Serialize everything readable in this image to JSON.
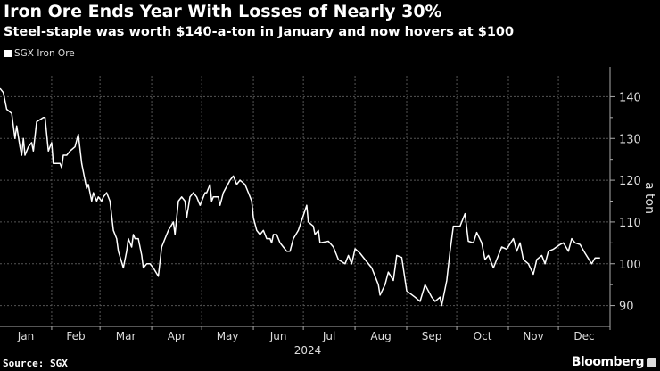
{
  "header": {
    "title": "Iron Ore Ends Year With Losses of Nearly 30%",
    "subtitle": "Steel-staple was worth $140-a-ton in January and now hovers at $100"
  },
  "footer": {
    "source": "Source: SGX",
    "brand": "Bloomberg"
  },
  "chart_data": {
    "type": "line",
    "title": "Iron Ore Ends Year With Losses of Nearly 30%",
    "subtitle": "Steel-staple was worth $140-a-ton in January and now hovers at $100",
    "xlabel": "2024",
    "ylabel": "a ton",
    "legend": {
      "position": "top-left",
      "entries": [
        "SGX Iron Ore"
      ]
    },
    "ylim": [
      85,
      145
    ],
    "yticks": [
      90,
      100,
      110,
      120,
      130,
      140
    ],
    "xlim_days": [
      0,
      366
    ],
    "month_labels": [
      "Jan",
      "Feb",
      "Mar",
      "Apr",
      "May",
      "Jun",
      "Jul",
      "Aug",
      "Sep",
      "Oct",
      "Nov",
      "Dec"
    ],
    "month_start_days": [
      0,
      31,
      60,
      91,
      121,
      152,
      182,
      213,
      244,
      274,
      305,
      335
    ],
    "grid": true,
    "colors": {
      "line": "#ffffff",
      "grid": "#555555",
      "axis": "#aaaaaa"
    },
    "series": [
      {
        "name": "SGX Iron Ore",
        "points_day_value": [
          [
            0,
            142
          ],
          [
            2,
            141
          ],
          [
            4,
            137
          ],
          [
            7,
            136
          ],
          [
            9,
            130
          ],
          [
            10,
            133
          ],
          [
            12,
            128
          ],
          [
            13,
            126
          ],
          [
            14,
            130
          ],
          [
            15,
            126
          ],
          [
            17,
            128
          ],
          [
            19,
            129
          ],
          [
            20,
            127
          ],
          [
            22,
            134
          ],
          [
            26,
            135
          ],
          [
            27,
            135
          ],
          [
            29,
            127
          ],
          [
            31,
            129
          ],
          [
            32,
            124
          ],
          [
            34,
            124
          ],
          [
            36,
            124
          ],
          [
            37,
            123
          ],
          [
            38,
            126
          ],
          [
            40,
            126
          ],
          [
            42,
            127
          ],
          [
            45,
            128
          ],
          [
            47,
            131
          ],
          [
            49,
            124
          ],
          [
            51,
            120
          ],
          [
            52,
            118
          ],
          [
            53,
            119
          ],
          [
            55,
            115
          ],
          [
            56,
            117
          ],
          [
            58,
            115
          ],
          [
            59,
            116
          ],
          [
            61,
            115
          ],
          [
            62,
            116
          ],
          [
            64,
            117
          ],
          [
            66,
            115
          ],
          [
            68,
            108
          ],
          [
            70,
            106
          ],
          [
            71,
            103
          ],
          [
            74,
            99
          ],
          [
            76,
            103
          ],
          [
            77,
            106
          ],
          [
            79,
            104
          ],
          [
            80,
            107
          ],
          [
            81,
            106
          ],
          [
            83,
            106
          ],
          [
            85,
            102
          ],
          [
            86,
            99
          ],
          [
            88,
            100
          ],
          [
            90,
            100
          ],
          [
            92,
            99
          ],
          [
            95,
            97
          ],
          [
            97,
            104
          ],
          [
            99,
            106
          ],
          [
            101,
            108
          ],
          [
            104,
            110
          ],
          [
            105,
            107
          ],
          [
            107,
            115
          ],
          [
            109,
            116
          ],
          [
            111,
            115
          ],
          [
            112,
            111
          ],
          [
            114,
            116
          ],
          [
            116,
            117
          ],
          [
            118,
            116
          ],
          [
            120,
            114
          ],
          [
            123,
            117
          ],
          [
            124,
            117
          ],
          [
            126,
            119
          ],
          [
            127,
            115
          ],
          [
            128,
            116
          ],
          [
            131,
            116
          ],
          [
            132,
            114
          ],
          [
            134,
            117
          ],
          [
            138,
            120
          ],
          [
            140,
            121
          ],
          [
            142,
            119
          ],
          [
            144,
            120
          ],
          [
            147,
            119
          ],
          [
            149,
            117
          ],
          [
            151,
            115
          ],
          [
            152,
            111
          ],
          [
            154,
            108
          ],
          [
            156,
            107
          ],
          [
            158,
            108
          ],
          [
            160,
            106
          ],
          [
            162,
            106
          ],
          [
            163,
            105
          ],
          [
            164,
            107
          ],
          [
            166,
            107
          ],
          [
            168,
            105
          ],
          [
            170,
            104
          ],
          [
            172,
            103
          ],
          [
            174,
            103
          ],
          [
            176,
            106
          ],
          [
            179,
            108
          ],
          [
            184,
            114
          ],
          [
            185,
            110
          ],
          [
            188,
            109
          ],
          [
            189,
            107
          ],
          [
            191,
            108
          ],
          [
            192,
            105
          ],
          [
            197,
            105.4
          ],
          [
            200,
            104
          ],
          [
            203,
            101
          ],
          [
            207,
            100
          ],
          [
            209,
            102
          ],
          [
            211,
            100
          ],
          [
            213,
            103.6
          ],
          [
            216,
            102.5
          ],
          [
            219,
            101
          ],
          [
            223,
            99
          ],
          [
            227,
            95
          ],
          [
            228,
            92.5
          ],
          [
            231,
            95
          ],
          [
            233,
            98
          ],
          [
            236,
            96
          ],
          [
            238,
            102
          ],
          [
            241,
            101.5
          ],
          [
            244,
            93.5
          ],
          [
            249,
            92
          ],
          [
            252,
            91
          ],
          [
            255,
            95
          ],
          [
            259,
            92
          ],
          [
            261,
            91
          ],
          [
            264,
            92
          ],
          [
            265,
            90
          ],
          [
            268,
            96
          ],
          [
            270,
            103
          ],
          [
            272,
            109
          ],
          [
            276,
            109
          ],
          [
            279,
            112
          ],
          [
            281,
            105.4
          ],
          [
            284,
            105
          ],
          [
            286,
            107.5
          ],
          [
            289,
            105
          ],
          [
            291,
            101
          ],
          [
            293,
            102
          ],
          [
            296,
            99
          ],
          [
            301,
            104
          ],
          [
            304,
            103.5
          ],
          [
            308,
            106
          ],
          [
            310,
            103
          ],
          [
            312,
            105
          ],
          [
            314,
            101
          ],
          [
            317,
            100
          ],
          [
            320,
            97.5
          ],
          [
            322,
            101
          ],
          [
            325,
            102
          ],
          [
            327,
            100
          ],
          [
            329,
            103
          ],
          [
            332,
            103.5
          ],
          [
            336,
            104.6
          ],
          [
            338,
            105
          ],
          [
            341,
            103
          ],
          [
            343,
            106
          ],
          [
            345,
            105
          ],
          [
            348,
            104.6
          ],
          [
            351,
            102.5
          ],
          [
            355,
            100
          ],
          [
            357,
            101.4
          ],
          [
            360,
            101.4
          ]
        ]
      }
    ]
  }
}
